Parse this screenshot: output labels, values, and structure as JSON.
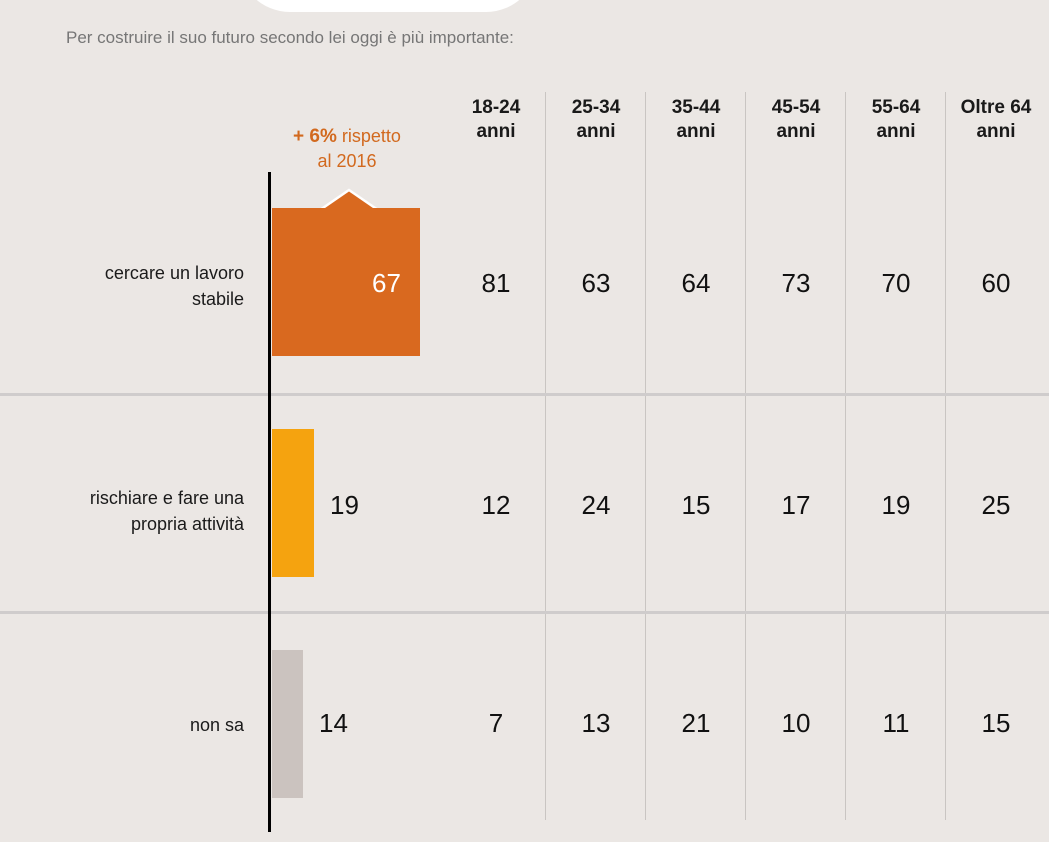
{
  "question": "Per costruire il suo futuro secondo lei oggi è più importante:",
  "annotation": {
    "bold": "+ 6%",
    "rest": "rispetto",
    "line2": "al 2016"
  },
  "columns": [
    {
      "l1": "18-24",
      "l2": "anni"
    },
    {
      "l1": "25-34",
      "l2": "anni"
    },
    {
      "l1": "35-44",
      "l2": "anni"
    },
    {
      "l1": "45-54",
      "l2": "anni"
    },
    {
      "l1": "55-64",
      "l2": "anni"
    },
    {
      "l1": "Oltre 64",
      "l2": "anni"
    }
  ],
  "rows": [
    {
      "label1": "cercare un lavoro",
      "label2": "stabile",
      "total": "67",
      "cells": [
        "81",
        "63",
        "64",
        "73",
        "70",
        "60"
      ]
    },
    {
      "label1": "rischiare e fare una",
      "label2": "propria attività",
      "total": "19",
      "cells": [
        "12",
        "24",
        "15",
        "17",
        "19",
        "25"
      ]
    },
    {
      "label1": "",
      "label2": "non sa",
      "total": "14",
      "cells": [
        "7",
        "13",
        "21",
        "10",
        "11",
        "15"
      ]
    }
  ],
  "chart_data": {
    "type": "bar",
    "orientation": "horizontal",
    "categories": [
      "cercare un lavoro stabile",
      "rischiare e fare una propria attività",
      "non sa"
    ],
    "values": [
      67,
      19,
      14
    ],
    "colors": [
      "#d9691f",
      "#f5a30f",
      "#cbc3bf"
    ],
    "table_columns": [
      "18-24 anni",
      "25-34 anni",
      "35-44 anni",
      "45-54 anni",
      "55-64 anni",
      "Oltre 64 anni"
    ],
    "table_values": [
      [
        81,
        63,
        64,
        73,
        70,
        60
      ],
      [
        12,
        24,
        15,
        17,
        19,
        25
      ],
      [
        7,
        13,
        21,
        10,
        11,
        15
      ]
    ]
  }
}
